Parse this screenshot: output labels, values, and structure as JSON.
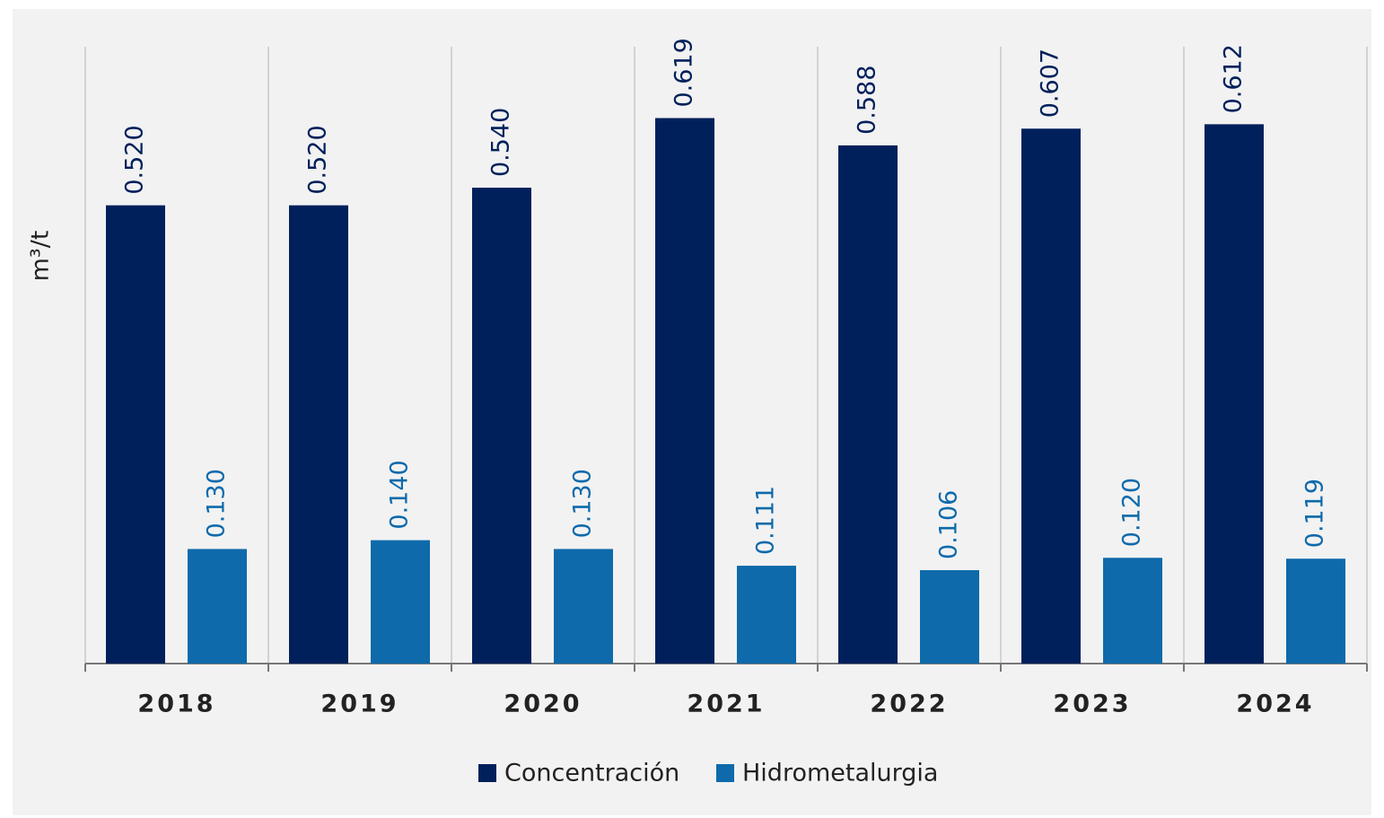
{
  "chart_data": {
    "type": "bar",
    "y_label": "m³/t",
    "categories": [
      "2018",
      "2019",
      "2020",
      "2021",
      "2022",
      "2023",
      "2024"
    ],
    "series": [
      {
        "name": "Concentración",
        "color": "#00205b",
        "values": [
          0.52,
          0.52,
          0.54,
          0.619,
          0.588,
          0.607,
          0.612
        ],
        "value_labels": [
          "0.520",
          "0.520",
          "0.540",
          "0.619",
          "0.588",
          "0.607",
          "0.612"
        ]
      },
      {
        "name": "Hidrometalurgia",
        "color": "#0e6aab",
        "values": [
          0.13,
          0.14,
          0.13,
          0.111,
          0.106,
          0.12,
          0.119
        ],
        "value_labels": [
          "0.130",
          "0.140",
          "0.130",
          "0.111",
          "0.106",
          "0.120",
          "0.119"
        ]
      }
    ],
    "ylim": [
      0,
      0.7
    ],
    "legend": "bottom"
  }
}
